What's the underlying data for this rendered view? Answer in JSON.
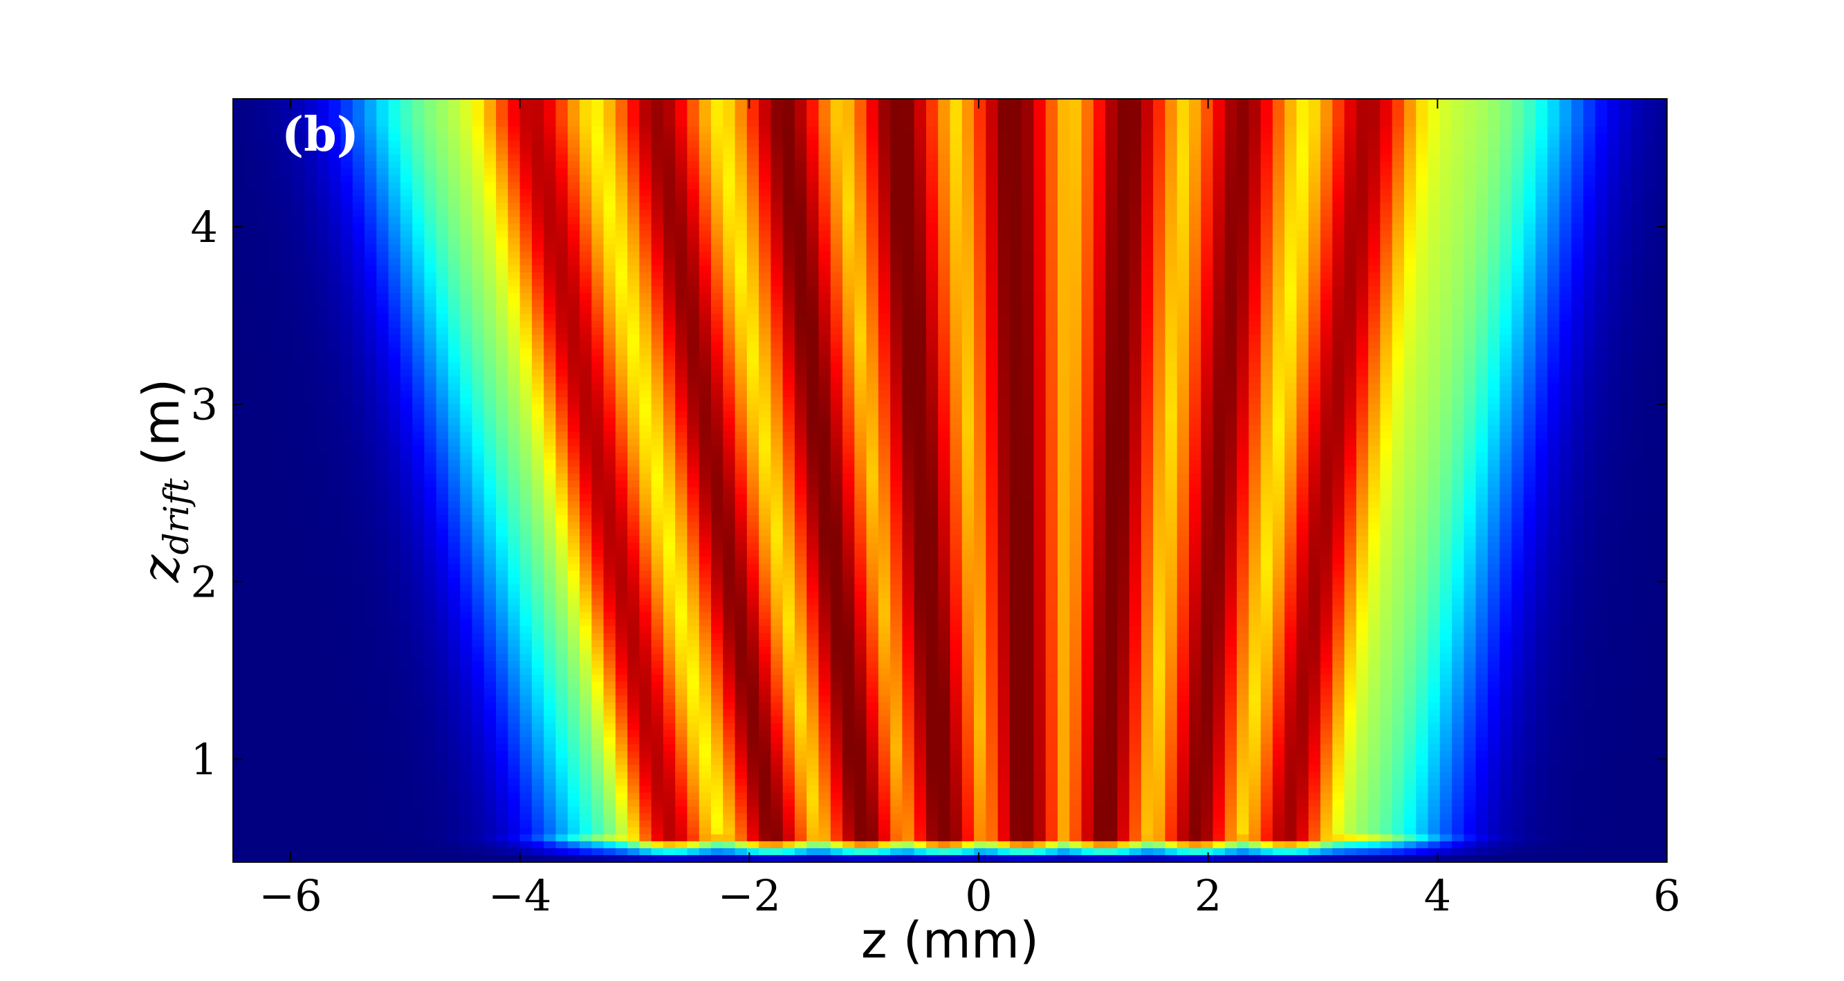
{
  "chart_data": {
    "type": "heatmap",
    "panel_label": "(b)",
    "xlabel": "z (mm)",
    "ylabel_math": "z",
    "ylabel_sub": "drift",
    "ylabel_unit": "(m)",
    "xlim": [
      -6.5,
      6.0
    ],
    "ylim": [
      0.42,
      4.72
    ],
    "x_ticks": [
      -6,
      -4,
      -2,
      0,
      2,
      4,
      6
    ],
    "y_ticks": [
      1,
      2,
      3,
      4
    ],
    "x_tick_labels": [
      "−6",
      "−4",
      "−2",
      "0",
      "2",
      "4",
      "6"
    ],
    "y_tick_labels": [
      "1",
      "2",
      "3",
      "4"
    ],
    "grid": false,
    "colormap": "jet",
    "colormap_stops": [
      "#00008f",
      "#0000ff",
      "#00ffff",
      "#ffff00",
      "#ff0000",
      "#800000"
    ],
    "envelope": {
      "left_edge_at_bottom": -3.6,
      "left_edge_at_top": -5.3,
      "right_edge_at_bottom": 3.9,
      "right_edge_at_top": 5.1,
      "onset_z_drift": 0.55
    },
    "fringe_peaks_z_mm_at_top": [
      -3.9,
      -2.8,
      -1.7,
      -0.7,
      0.3,
      1.3,
      2.3,
      3.4
    ],
    "fringe_peaks_z_mm_at_bottom": [
      -2.7,
      -1.8,
      -1.0,
      -0.3,
      0.4,
      1.1,
      1.9,
      2.7
    ],
    "value_range": [
      0,
      1
    ]
  }
}
